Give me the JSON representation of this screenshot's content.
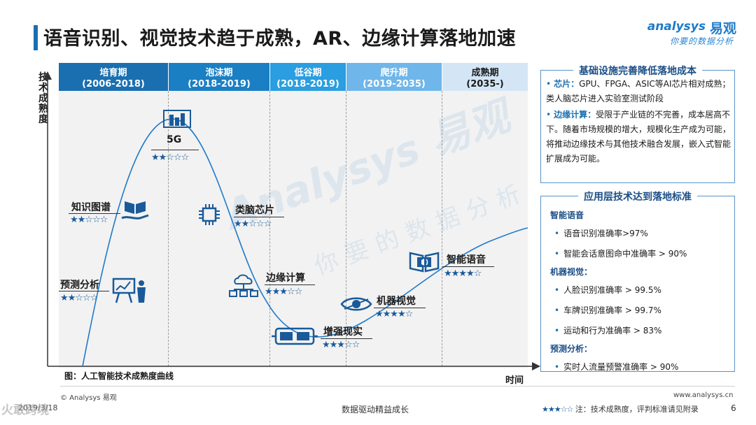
{
  "title": "语音识别、视觉技术趋于成熟，AR、边缘计算落地加速",
  "logo": {
    "en": "analysys",
    "cn": "易观",
    "slogan": "你要的数据分析"
  },
  "chart": {
    "ylabel": "技术成熟度",
    "xlabel": "时间",
    "caption": "图：人工智能技术成熟度曲线",
    "phases": [
      {
        "name": "培育期",
        "years": "(2006-2018)",
        "color": "#1a6fb0"
      },
      {
        "name": "泡沫期",
        "years": "(2018-2019)",
        "color": "#1b7fc4"
      },
      {
        "name": "低谷期",
        "years": "(2018-2019)",
        "color": "#2a9ee0"
      },
      {
        "name": "爬升期",
        "years": "(2019-2035)",
        "color": "#6fb6ea"
      },
      {
        "name": "成熟期",
        "years": "(2035-)",
        "color": "#d4e6f6"
      }
    ],
    "nodes": [
      {
        "label": "5G",
        "rating": 2,
        "icon": "5g-building-icon"
      },
      {
        "label": "知识图谱",
        "rating": 2,
        "icon": "open-book-hand-icon"
      },
      {
        "label": "类脑芯片",
        "rating": 2,
        "icon": "chip-icon"
      },
      {
        "label": "预测分析",
        "rating": 2,
        "icon": "presentation-icon"
      },
      {
        "label": "边缘计算",
        "rating": 3,
        "icon": "cloud-network-icon"
      },
      {
        "label": "智能语音",
        "rating": 4,
        "icon": "audio-book-icon"
      },
      {
        "label": "机器视觉",
        "rating": 4,
        "icon": "eye-icon"
      },
      {
        "label": "增强现实",
        "rating": 3,
        "icon": "vr-glasses-icon"
      }
    ],
    "star_max": 5
  },
  "panel_infra": {
    "title": "基础设施完善降低落地成本",
    "items": [
      {
        "head": "芯片：",
        "text": "GPU、FPGA、ASIC等AI芯片相对成熟；类人脑芯片进入实验室测试阶段"
      },
      {
        "head": "边缘计算：",
        "text": "受限于产业链的不完善，成本居高不下。随着市场规模的增大，规模化生产成为可能，将推动边缘技术与其他技术融合发展，嵌入式智能扩展成为可能。"
      }
    ]
  },
  "panel_app": {
    "title": "应用层技术达到落地标准",
    "groups": [
      {
        "head": "智能语音",
        "items": [
          "语音识别准确率>97%",
          "智能会话意图命中准确率 > 90%"
        ]
      },
      {
        "head": "机器视觉：",
        "items": [
          "人脸识别准确率 > 99.5%",
          "车牌识别准确率 > 99.7%",
          "运动和行为准确率 > 83%"
        ]
      },
      {
        "head": "预测分析：",
        "items": [
          "实时人流量预警准确率 > 90%"
        ]
      }
    ]
  },
  "footer": {
    "copyright": "© Analysys 易观",
    "date": "2019/3/18",
    "center": "数据驱动精益成长",
    "site": "www.analysys.cn",
    "note_stars": "★★★☆☆",
    "note": "注：技术成熟度，评判标准请见附录",
    "page": "6",
    "watermark": "火敢跨境"
  },
  "colors": {
    "accent": "#1a6fb0",
    "curve": "#1f7ac9",
    "stars": "#1a5a9a"
  }
}
